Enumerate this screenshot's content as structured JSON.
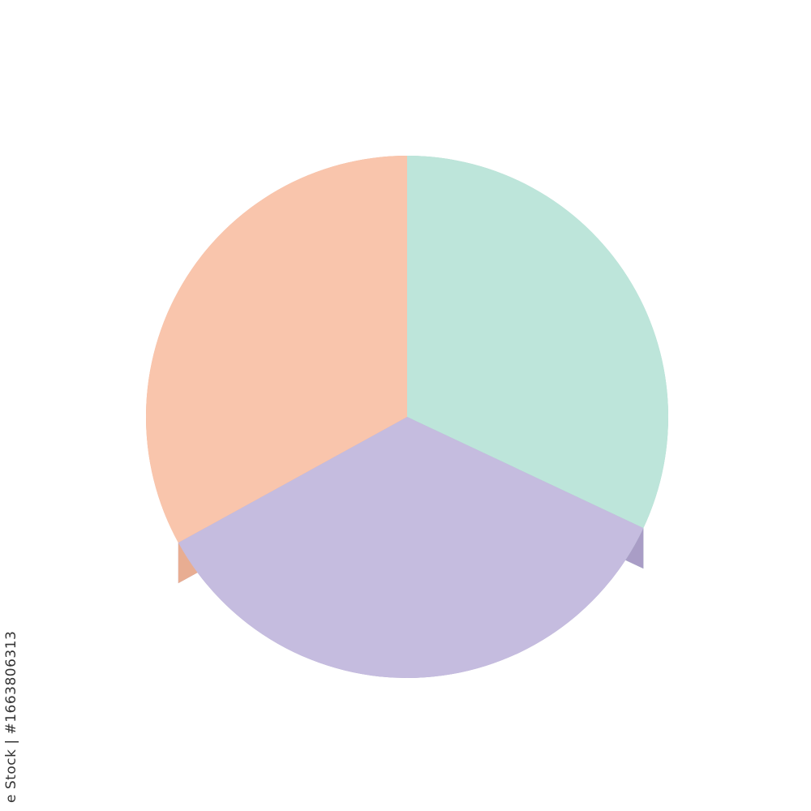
{
  "chart_data": {
    "type": "pie",
    "style": "3d",
    "start_angle_deg": 0,
    "direction": "clockwise-from-top",
    "slices": [
      {
        "value": 32,
        "color": "#bde5da",
        "side_color": "#a4d1c4"
      },
      {
        "value": 35,
        "color": "#c5bcdf",
        "side_color": "#a99dc6"
      },
      {
        "value": 33,
        "color": "#f9c5ac",
        "side_color": "#e8ad92"
      }
    ],
    "legend": "none",
    "title": ""
  },
  "watermark": {
    "text": "e Stock | #1663806313"
  }
}
